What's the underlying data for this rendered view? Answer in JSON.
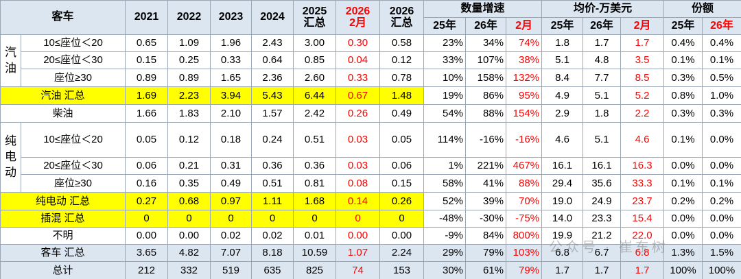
{
  "header": {
    "corner": "客车",
    "columns": [
      "2021",
      "2022",
      "2023",
      "2024",
      "2025\n汇总",
      "2026\n2月",
      "2026\n汇总"
    ],
    "groups": [
      "数量增速",
      "均价-万美元",
      "份额"
    ],
    "subcolumns": [
      "25年",
      "26年",
      "2月",
      "25年",
      "26年",
      "2月",
      "25年",
      "26年"
    ]
  },
  "table": {
    "groups": [
      "汽\n油",
      "纯\n电\n动"
    ],
    "rows": [
      {
        "label": "10≤座位＜20",
        "cells": [
          "0.65",
          "1.09",
          "1.96",
          "2.43",
          "3.00",
          "0.30",
          "0.58",
          "23%",
          "34%",
          "74%",
          "1.8",
          "1.7",
          "1.7",
          "0.4%",
          "0.4%"
        ]
      },
      {
        "label": "20≤座位＜30",
        "cells": [
          "0.15",
          "0.25",
          "0.33",
          "0.64",
          "0.85",
          "0.04",
          "0.12",
          "33%",
          "107%",
          "38%",
          "5.1",
          "4.8",
          "3.5",
          "0.1%",
          "0.1%"
        ]
      },
      {
        "label": "座位≥30",
        "cells": [
          "0.89",
          "0.89",
          "1.65",
          "2.36",
          "2.60",
          "0.33",
          "0.78",
          "10%",
          "158%",
          "132%",
          "8.4",
          "7.7",
          "8.5",
          "0.3%",
          "0.5%"
        ]
      },
      {
        "label": "汽油 汇总",
        "cells": [
          "1.69",
          "2.23",
          "3.94",
          "5.43",
          "6.44",
          "0.67",
          "1.48",
          "19%",
          "86%",
          "95%",
          "4.9",
          "5.1",
          "5.2",
          "0.8%",
          "1.0%"
        ]
      },
      {
        "label": "柴油",
        "cells": [
          "1.66",
          "1.83",
          "2.10",
          "1.57",
          "2.42",
          "0.26",
          "0.49",
          "54%",
          "88%",
          "154%",
          "2.9",
          "1.8",
          "2.2",
          "0.3%",
          "0.3%"
        ]
      },
      {
        "label": "10≤座位＜20",
        "cells": [
          "0.05",
          "0.12",
          "0.18",
          "0.24",
          "0.51",
          "0.03",
          "0.05",
          "114%",
          "-16%",
          "-16%",
          "4.6",
          "5.1",
          "4.6",
          "0.1%",
          "0.0%"
        ]
      },
      {
        "label": "20≤座位＜30",
        "cells": [
          "0.06",
          "0.21",
          "0.31",
          "0.36",
          "0.36",
          "0.03",
          "0.06",
          "1%",
          "221%",
          "467%",
          "16.1",
          "16.1",
          "16.3",
          "0.0%",
          "0.0%"
        ]
      },
      {
        "label": "座位≥30",
        "cells": [
          "0.16",
          "0.35",
          "0.49",
          "0.51",
          "0.81",
          "0.08",
          "0.15",
          "58%",
          "41%",
          "88%",
          "29.4",
          "35.6",
          "33.3",
          "0.1%",
          "0.1%"
        ]
      },
      {
        "label": "纯电动 汇总",
        "cells": [
          "0.27",
          "0.68",
          "0.97",
          "1.11",
          "1.68",
          "0.14",
          "0.26",
          "52%",
          "39%",
          "70%",
          "19.0",
          "24.9",
          "23.7",
          "0.2%",
          "0.2%"
        ]
      },
      {
        "label": "插混 汇总",
        "cells": [
          "0",
          "0",
          "0",
          "0",
          "0",
          "0",
          "0",
          "-48%",
          "-30%",
          "-75%",
          "14.0",
          "23.3",
          "15.4",
          "0.0%",
          "0.0%"
        ]
      },
      {
        "label": "不明",
        "cells": [
          "0.00",
          "0.00",
          "0.02",
          "0.02",
          "0.01",
          "0.00",
          "0.00",
          "-9%",
          "84%",
          "800%",
          "19.9",
          "21.2",
          "22.0",
          "0.0%",
          "0.0%"
        ]
      },
      {
        "label": "客车 汇总",
        "cells": [
          "3.65",
          "4.82",
          "7.07",
          "8.18",
          "10.59",
          "1.07",
          "2.24",
          "29%",
          "79%",
          "103%",
          "6.8",
          "6.7",
          "6.8",
          "1.3%",
          "1.5%"
        ]
      },
      {
        "label": "总计",
        "cells": [
          "212",
          "332",
          "519",
          "635",
          "825",
          "74",
          "153",
          "30%",
          "61%",
          "79%",
          "1.7",
          "1.7",
          "1.7",
          "100%",
          "100%"
        ]
      }
    ]
  },
  "watermark": "公众号 · 崔东树"
}
